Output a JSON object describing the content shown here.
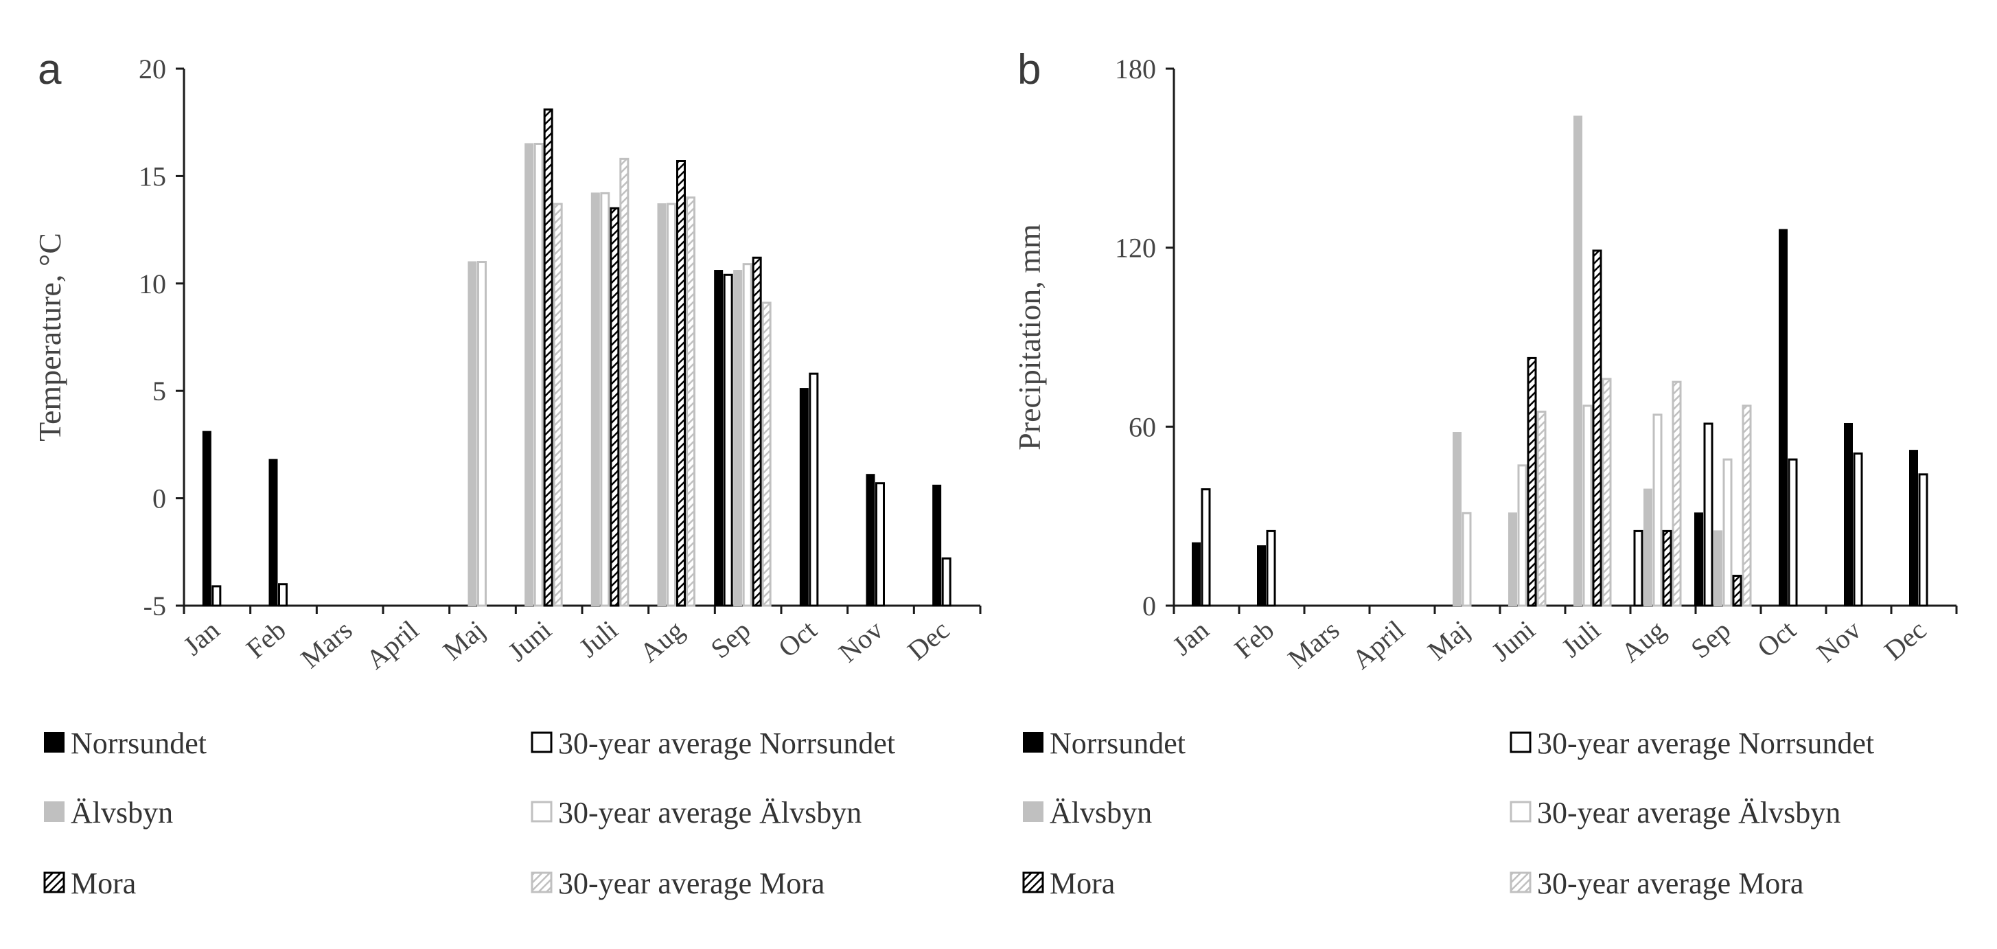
{
  "colors": {
    "norrsundet": "#000000",
    "alvsbyn": "#c0c0c0",
    "mora_fill": "#ffffff",
    "mora_stroke": "#000000",
    "avg_alvsbyn": "#c0c0c0",
    "avg_mora": "#c0c0c0"
  },
  "chart_data": [
    {
      "type": "bar",
      "panel": "a",
      "ylabel": "Temperature, °C",
      "ylim": [
        -5,
        20
      ],
      "yticks": [
        "-5",
        "0",
        "5",
        "10",
        "15",
        "20"
      ],
      "ytick_values": [
        -5,
        0,
        5,
        10,
        15,
        20
      ],
      "categories": [
        "Jan",
        "Feb",
        "Mars",
        "April",
        "Maj",
        "Juni",
        "Juli",
        "Aug",
        "Sep",
        "Oct",
        "Nov",
        "Dec"
      ],
      "series": [
        {
          "name": "Norrsundet",
          "style": "solid-black",
          "values": [
            3.1,
            1.8,
            null,
            null,
            null,
            null,
            null,
            null,
            10.6,
            5.1,
            1.1,
            0.6
          ]
        },
        {
          "name": "30-year average Norrsundet",
          "style": "outline-black",
          "values": [
            -4.1,
            -4.0,
            null,
            null,
            null,
            null,
            null,
            null,
            10.4,
            5.8,
            0.7,
            -2.8
          ]
        },
        {
          "name": "Älvsbyn",
          "style": "solid-grey",
          "values": [
            null,
            null,
            null,
            null,
            11.0,
            16.5,
            14.2,
            13.7,
            10.6,
            null,
            null,
            null
          ]
        },
        {
          "name": "30-year average Älvsbyn",
          "style": "outline-grey",
          "values": [
            null,
            null,
            null,
            null,
            11.0,
            16.5,
            14.2,
            13.7,
            10.9,
            null,
            null,
            null
          ]
        },
        {
          "name": "Mora",
          "style": "hatch-black",
          "values": [
            null,
            null,
            null,
            null,
            null,
            18.1,
            13.5,
            15.7,
            11.2,
            null,
            null,
            null
          ]
        },
        {
          "name": "30-year average Mora",
          "style": "hatch-grey",
          "values": [
            null,
            null,
            null,
            null,
            null,
            13.7,
            15.8,
            14.0,
            9.1,
            null,
            null,
            null
          ]
        }
      ]
    },
    {
      "type": "bar",
      "panel": "b",
      "ylabel": "Precipitation, mm",
      "ylim": [
        0,
        180
      ],
      "yticks": [
        "0",
        "60",
        "120",
        "180"
      ],
      "ytick_values": [
        0,
        60,
        120,
        180
      ],
      "categories": [
        "Jan",
        "Feb",
        "Mars",
        "April",
        "Maj",
        "Juni",
        "Juli",
        "Aug",
        "Sep",
        "Oct",
        "Nov",
        "Dec"
      ],
      "series": [
        {
          "name": "Norrsundet",
          "style": "solid-black",
          "values": [
            21,
            20,
            null,
            null,
            null,
            null,
            null,
            null,
            31,
            126,
            61,
            52
          ]
        },
        {
          "name": "30-year average Norrsundet",
          "style": "outline-black",
          "values": [
            39,
            25,
            null,
            null,
            null,
            null,
            null,
            25,
            61,
            49,
            51,
            44
          ]
        },
        {
          "name": "Älvsbyn",
          "style": "solid-grey",
          "values": [
            null,
            null,
            null,
            null,
            58,
            31,
            164,
            39,
            25,
            null,
            null,
            null
          ]
        },
        {
          "name": "30-year average Älvsbyn",
          "style": "outline-grey",
          "values": [
            null,
            null,
            null,
            null,
            31,
            47,
            67,
            64,
            49,
            null,
            null,
            null
          ]
        },
        {
          "name": "Mora",
          "style": "hatch-black",
          "values": [
            null,
            null,
            null,
            null,
            null,
            83,
            119,
            25,
            10,
            null,
            null,
            null
          ]
        },
        {
          "name": "30-year average Mora",
          "style": "hatch-grey",
          "values": [
            null,
            null,
            null,
            null,
            null,
            65,
            76,
            75,
            67,
            null,
            null,
            null
          ]
        }
      ]
    }
  ]
}
